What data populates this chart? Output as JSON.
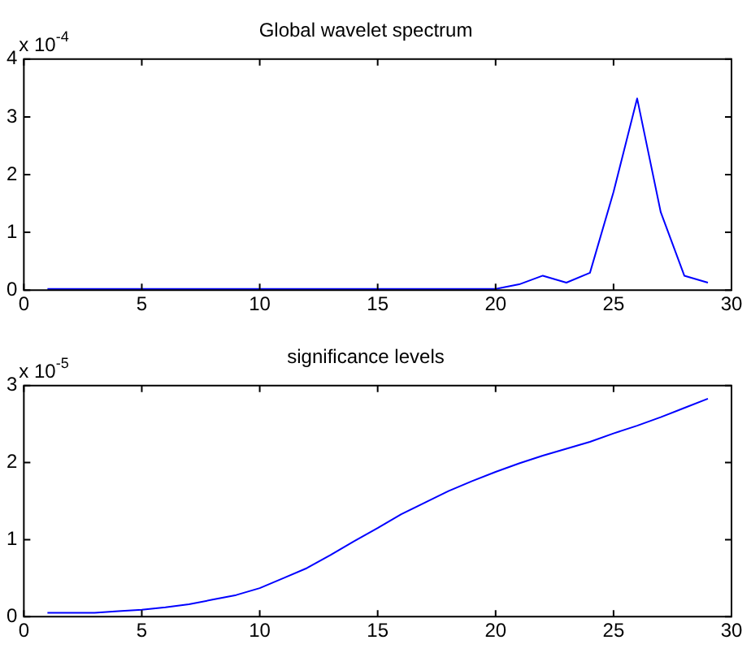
{
  "chart_data": [
    {
      "type": "line",
      "title": "Global wavelet spectrum",
      "annotations": [
        "x 10$^{-4}$"
      ],
      "x": [
        1,
        2,
        3,
        4,
        5,
        6,
        7,
        8,
        9,
        10,
        11,
        12,
        13,
        14,
        15,
        16,
        17,
        18,
        19,
        20,
        21,
        22,
        23,
        24,
        25,
        26,
        27,
        28,
        29
      ],
      "series": [
        {
          "color": "#0000ff",
          "values": [
            0.02,
            0.02,
            0.02,
            0.02,
            0.02,
            0.02,
            0.02,
            0.02,
            0.02,
            0.02,
            0.02,
            0.02,
            0.02,
            0.02,
            0.02,
            0.02,
            0.02,
            0.02,
            0.02,
            0.02,
            0.1,
            0.25,
            0.13,
            0.3,
            1.7,
            3.32,
            1.35,
            0.25,
            0.13
          ]
        }
      ],
      "xlim": [
        0,
        30
      ],
      "xticks": [
        0,
        5,
        10,
        15,
        20,
        25,
        30
      ],
      "ylim": [
        0,
        4
      ],
      "yticks": [
        0,
        1,
        2,
        3,
        4
      ],
      "grid": false,
      "legend": false
    },
    {
      "type": "line",
      "title": "significance levels",
      "annotations": [
        "x 10$^{-5}$"
      ],
      "x": [
        1,
        2,
        3,
        4,
        5,
        6,
        7,
        8,
        9,
        10,
        11,
        12,
        13,
        14,
        15,
        16,
        17,
        18,
        19,
        20,
        21,
        22,
        23,
        24,
        25,
        26,
        27,
        28,
        29
      ],
      "series": [
        {
          "color": "#0000ff",
          "values": [
            0.05,
            0.05,
            0.05,
            0.07,
            0.09,
            0.12,
            0.16,
            0.22,
            0.28,
            0.37,
            0.5,
            0.63,
            0.8,
            0.98,
            1.15,
            1.33,
            1.48,
            1.63,
            1.76,
            1.88,
            1.99,
            2.09,
            2.18,
            2.27,
            2.38,
            2.48,
            2.59,
            2.71,
            2.83
          ]
        }
      ],
      "xlim": [
        0,
        30
      ],
      "xticks": [
        0,
        5,
        10,
        15,
        20,
        25,
        30
      ],
      "ylim": [
        0,
        3
      ],
      "yticks": [
        0,
        1,
        2,
        3
      ],
      "grid": false,
      "legend": false
    }
  ]
}
